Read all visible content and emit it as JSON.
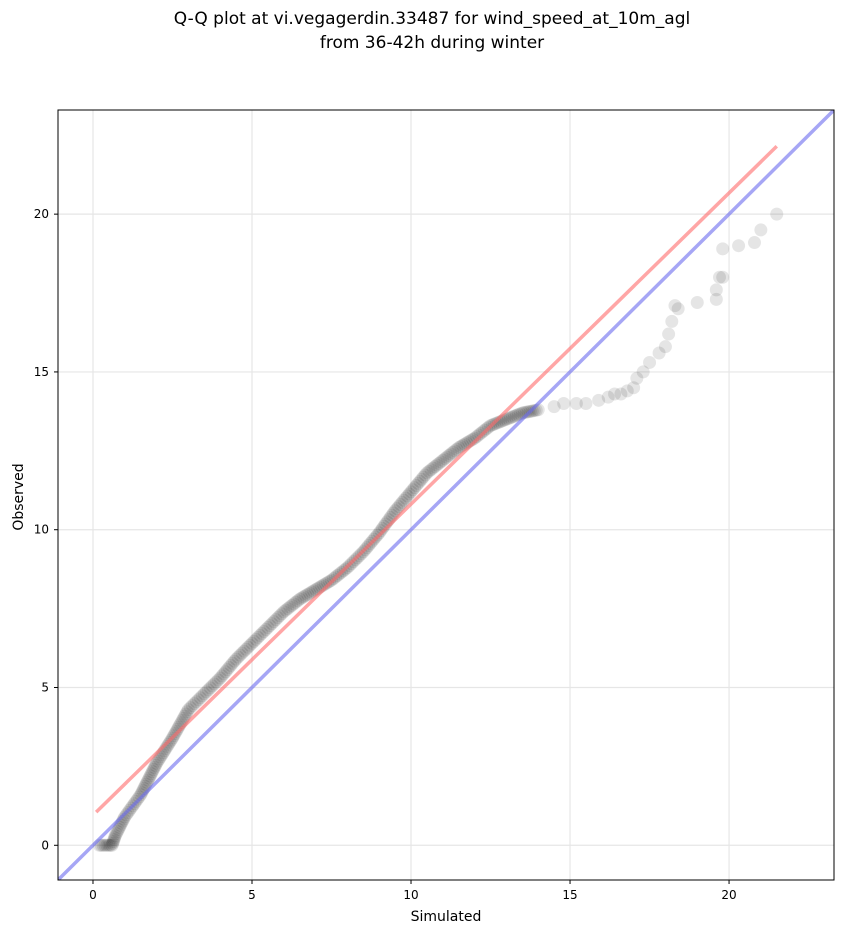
{
  "chart_data": {
    "type": "scatter",
    "title_line1": "Q-Q plot at vi.vegagerdin.33487 for wind_speed_at_10m_agl",
    "title_line2": "from 36-42h during winter",
    "xlabel": "Simulated",
    "ylabel": "Observed",
    "xlim": [
      -1.1,
      23.3
    ],
    "ylim": [
      -1.1,
      23.3
    ],
    "xticks": [
      0,
      5,
      10,
      15,
      20
    ],
    "yticks": [
      0,
      5,
      10,
      15,
      20
    ],
    "grid": true,
    "colors": {
      "points": "#000000",
      "fit_line": "#ff6b6b",
      "identity_line": "#6b6bef",
      "grid": "#e6e6e6"
    },
    "identity_line": {
      "x": [
        -1.1,
        23.3
      ],
      "y": [
        -1.1,
        23.3
      ]
    },
    "fit_line": {
      "x": [
        0.1,
        21.5
      ],
      "y": [
        1.05,
        22.15
      ]
    },
    "quantile_curve": {
      "x": [
        0.2,
        0.5,
        0.6,
        0.7,
        1.0,
        1.5,
        2.0,
        2.5,
        3.0,
        3.5,
        4.0,
        4.5,
        5.0,
        5.5,
        6.0,
        6.5,
        7.0,
        7.5,
        8.0,
        8.5,
        9.0,
        9.5,
        10.0,
        10.5,
        11.0,
        11.5,
        12.0,
        12.5,
        13.0,
        13.5,
        14.0
      ],
      "y": [
        0.0,
        0.0,
        0.0,
        0.3,
        0.9,
        1.6,
        2.6,
        3.4,
        4.3,
        4.8,
        5.3,
        5.9,
        6.4,
        6.9,
        7.4,
        7.8,
        8.1,
        8.4,
        8.8,
        9.3,
        9.9,
        10.6,
        11.2,
        11.8,
        12.2,
        12.6,
        12.9,
        13.3,
        13.5,
        13.7,
        13.8
      ]
    },
    "tail_points": {
      "x": [
        14.5,
        14.8,
        15.2,
        15.5,
        15.9,
        16.2,
        16.4,
        16.6,
        16.8,
        17.0,
        17.1,
        17.3,
        17.5,
        17.8,
        18.0,
        18.1,
        18.2,
        18.3,
        18.4,
        19.0,
        19.6,
        19.6,
        19.7,
        19.8,
        19.8,
        20.3,
        20.8,
        21.0,
        21.5
      ],
      "y": [
        13.9,
        14.0,
        14.0,
        14.0,
        14.1,
        14.2,
        14.3,
        14.3,
        14.4,
        14.5,
        14.8,
        15.0,
        15.3,
        15.6,
        15.8,
        16.2,
        16.6,
        17.1,
        17.0,
        17.2,
        17.3,
        17.6,
        18.0,
        18.0,
        18.9,
        19.0,
        19.1,
        19.5,
        20.0
      ]
    }
  }
}
